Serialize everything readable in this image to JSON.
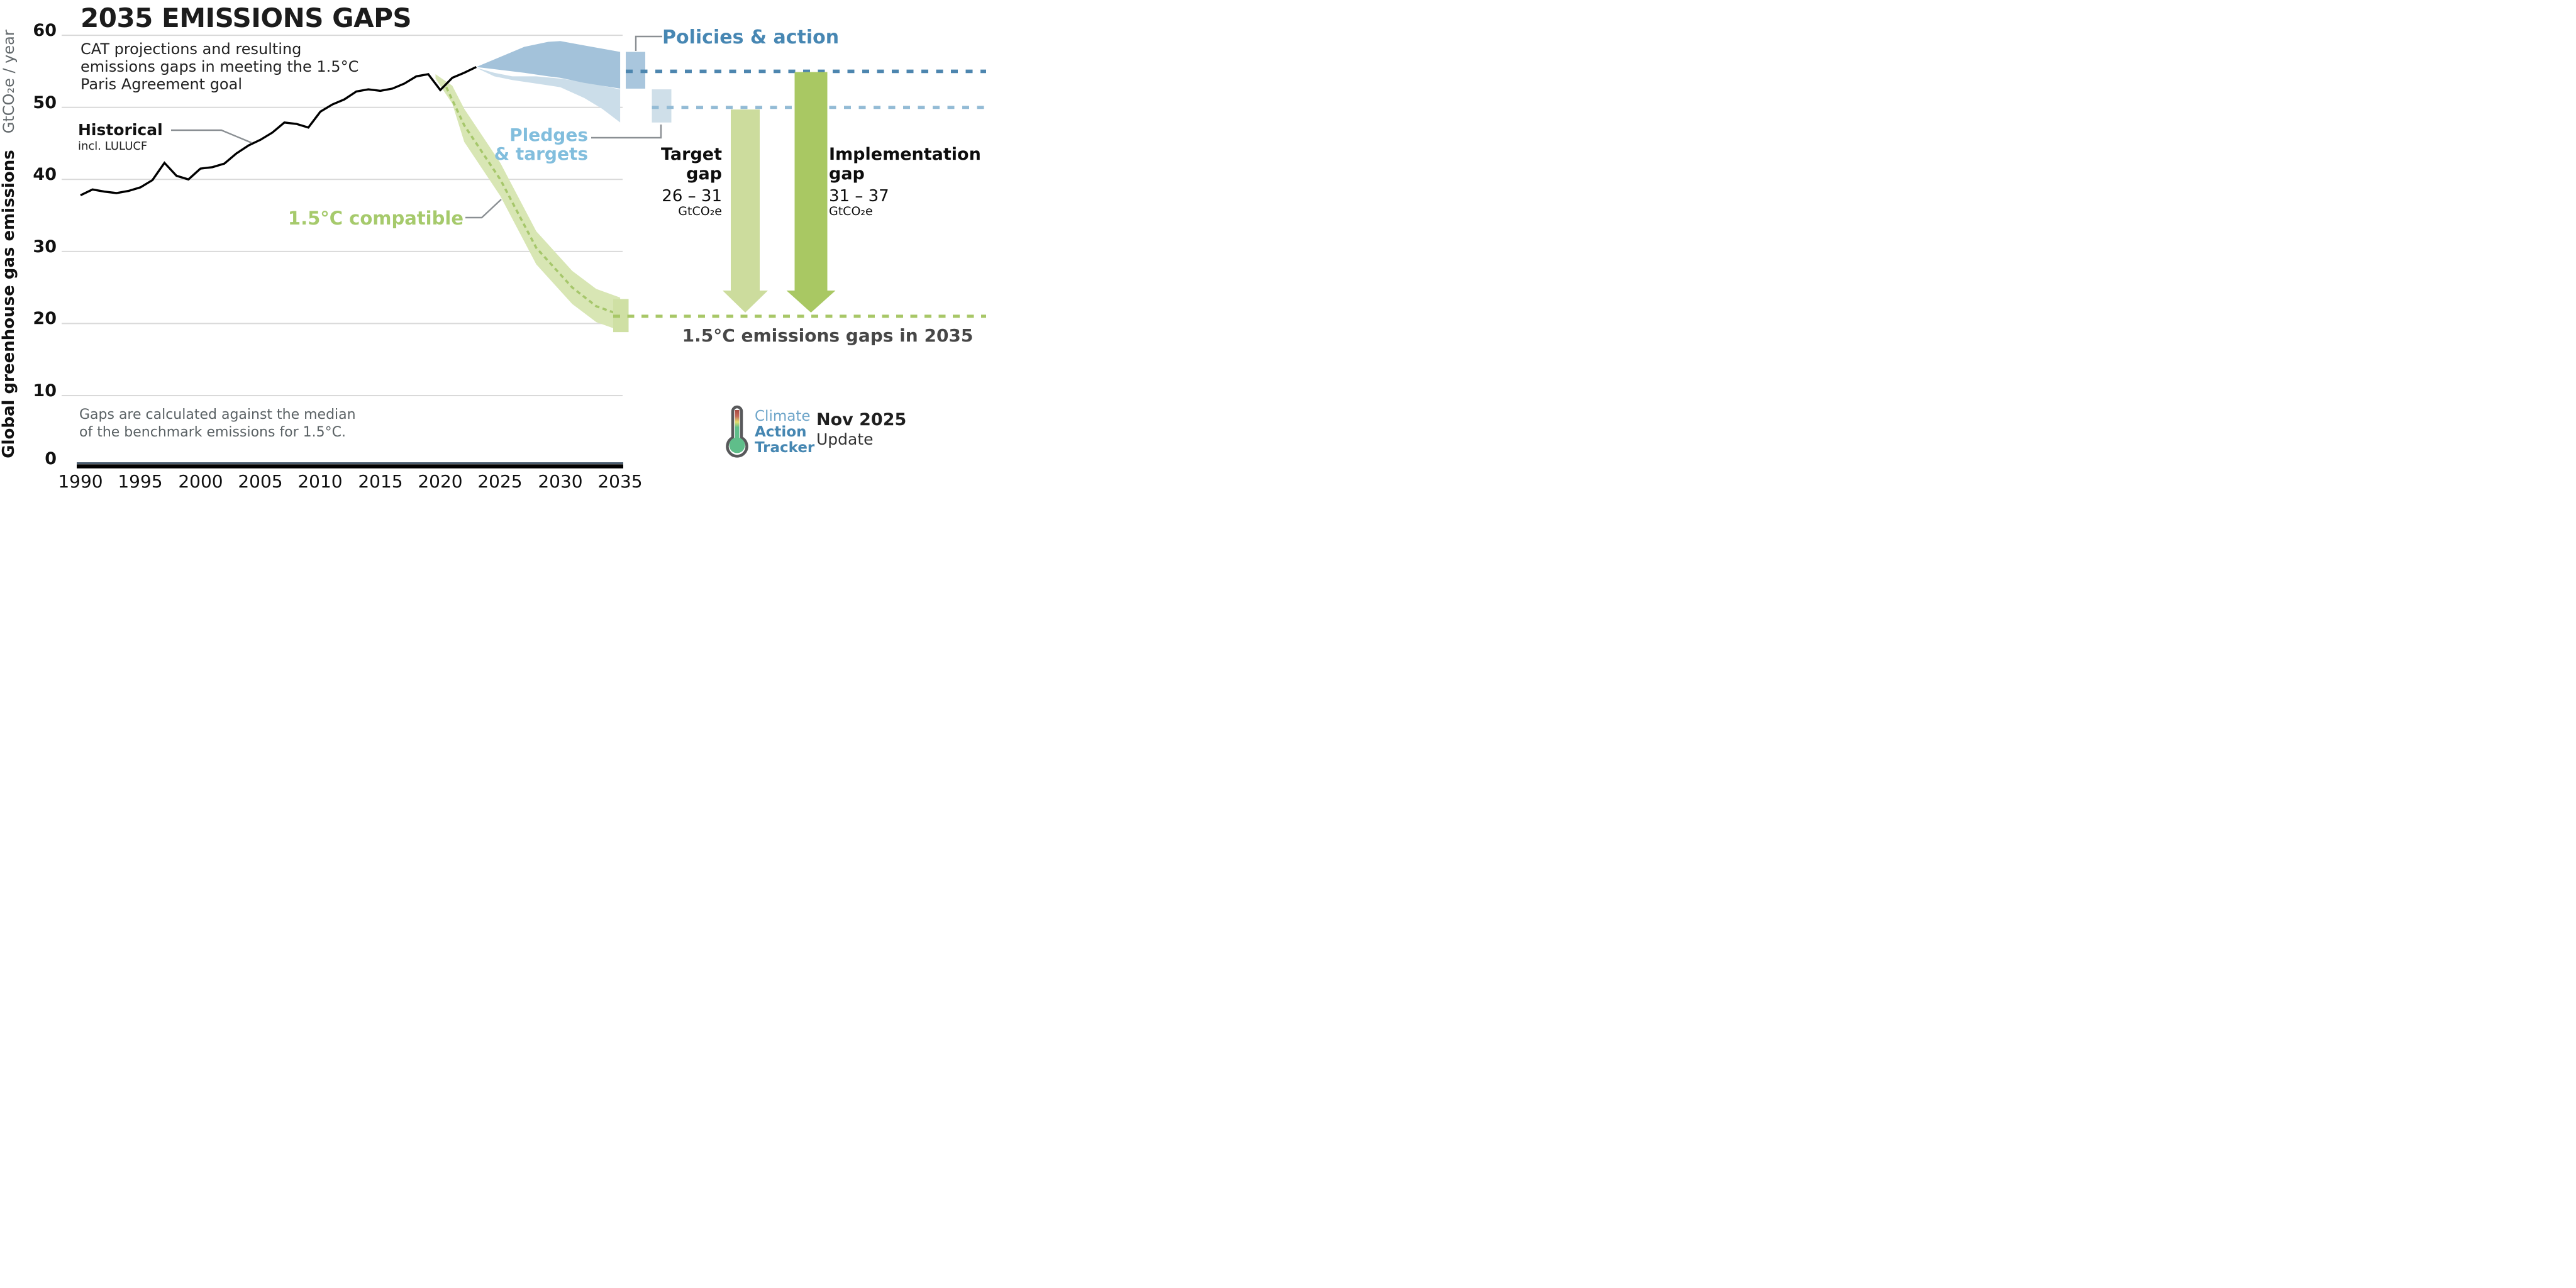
{
  "header": {
    "title": "2035 EMISSIONS GAPS",
    "subtitle": [
      "CAT projections and resulting",
      "emissions gaps in meeting the 1.5°C",
      "Paris Agreement goal"
    ]
  },
  "note": [
    "Gaps are calculated against the median",
    "of the benchmark emissions for 1.5°C."
  ],
  "logo": {
    "line1": "Climate",
    "line2": "Action",
    "line3": "Tracker",
    "date": "Nov 2025",
    "update": "Update"
  },
  "chart_data": {
    "type": "area",
    "title": "2035 EMISSIONS GAPS",
    "ylabel_bold": "Global greenhouse gas emissions",
    "ylabel_unit": "GtCO₂e / year",
    "xlim": [
      1990,
      2035
    ],
    "ylim": [
      0,
      60
    ],
    "x_ticks": [
      1990,
      1995,
      2000,
      2005,
      2010,
      2015,
      2020,
      2025,
      2030,
      2035
    ],
    "y_ticks": [
      0,
      10,
      20,
      30,
      40,
      50,
      60
    ],
    "grid_color": "#d9d9d9",
    "historical": {
      "label": "Historical",
      "sublabel": "incl. LULUCF",
      "color": "#000000",
      "years": [
        1990,
        1991,
        1992,
        1993,
        1994,
        1995,
        1996,
        1997,
        1998,
        1999,
        2000,
        2001,
        2002,
        2003,
        2004,
        2005,
        2006,
        2007,
        2008,
        2009,
        2010,
        2011,
        2012,
        2013,
        2014,
        2015,
        2016,
        2017,
        2018,
        2019,
        2020,
        2021,
        2022,
        2023
      ],
      "values": [
        37.8,
        38.6,
        38.3,
        38.1,
        38.4,
        38.9,
        39.9,
        42.3,
        40.5,
        40.0,
        41.5,
        41.7,
        42.2,
        43.6,
        44.7,
        45.5,
        46.5,
        47.9,
        47.7,
        47.2,
        49.4,
        50.4,
        51.1,
        52.2,
        52.5,
        52.3,
        52.6,
        53.3,
        54.3,
        54.6,
        52.4,
        54.1,
        54.8,
        55.6
      ]
    },
    "policies_action": {
      "label": "Policies & action",
      "label_color": "#4787b3",
      "band_color": "#a3c2da",
      "box_color": "#a9c6dd",
      "dash_color": "#4d86af",
      "years": [
        2023,
        2025,
        2027,
        2029,
        2030,
        2032,
        2035
      ],
      "top": [
        55.6,
        57.0,
        58.4,
        59.1,
        59.2,
        58.6,
        57.7
      ],
      "bottom": [
        55.6,
        55.2,
        54.8,
        54.3,
        54.1,
        53.4,
        52.6
      ],
      "range_2035": [
        52.6,
        57.7
      ],
      "median_2035": 55.0
    },
    "pledges_targets": {
      "label_lines": [
        "Pledges",
        "& targets"
      ],
      "label_color": "#82bedd",
      "band_color": "#cbdde9",
      "box_color": "#cfdfe9",
      "dash_color": "#93bbd5",
      "years": [
        2023,
        2024.5,
        2026,
        2028,
        2030,
        2032,
        2033.5,
        2035
      ],
      "top": [
        55.5,
        54.8,
        54.3,
        54.3,
        54.0,
        53.5,
        53.0,
        52.5
      ],
      "bottom": [
        55.5,
        54.3,
        53.8,
        53.3,
        52.8,
        51.3,
        49.8,
        47.9
      ],
      "range_2035": [
        47.9,
        52.5
      ],
      "median_2035": 50.0
    },
    "compatible_15c": {
      "label": "1.5°C compatible",
      "label_color": "#a6ca6c",
      "band_color": "#d8e6b4",
      "box_color": "#cfe0a4",
      "dash_color": "#a8c767",
      "years": [
        2019.6,
        2021,
        2022,
        2025,
        2028,
        2031,
        2033,
        2035
      ],
      "top": [
        54.6,
        53.0,
        49.8,
        42.3,
        32.8,
        27.3,
        24.8,
        23.6
      ],
      "bottom": [
        54.0,
        50.5,
        45.2,
        37.7,
        28.2,
        22.7,
        20.2,
        19.0
      ],
      "median_years": [
        2020.5,
        2022,
        2025,
        2028,
        2031,
        2033,
        2035
      ],
      "median": [
        52.8,
        47.5,
        40.0,
        30.5,
        25.0,
        22.4,
        21.2
      ],
      "range_2035": [
        18.8,
        23.4
      ],
      "median_2035": 21.0
    },
    "gaps": {
      "caption": "1.5°C emissions gaps in 2035",
      "target": {
        "label_lines": [
          "Target",
          "gap"
        ],
        "value": "26 – 31",
        "unit": "GtCO₂e",
        "arrow_color": "#ccdc9d",
        "from_value": 49.7,
        "to_value": 21.4
      },
      "implementation": {
        "label_lines": [
          "Implementation",
          "gap"
        ],
        "value": "31 – 37",
        "unit": "GtCO₂e",
        "arrow_color": "#a9c863",
        "from_value": 54.9,
        "to_value": 21.4
      }
    },
    "axis_colors": {
      "x_axis_black": "#000000",
      "x_axis_slate": "#4a5c6e",
      "callout_gray": "#8a8f93"
    }
  }
}
